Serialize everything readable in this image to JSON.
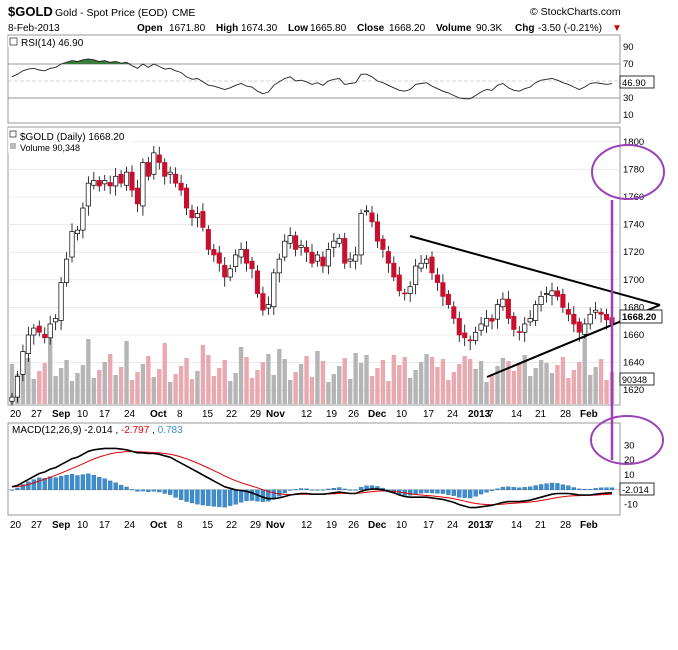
{
  "header": {
    "symbol": "$GOLD",
    "name": "Gold - Spot Price (EOD)",
    "exchange": "CME",
    "date": "8-Feb-2013",
    "open_label": "Open",
    "open": "1671.80",
    "high_label": "High",
    "high": "1674.30",
    "low_label": "Low",
    "low": "1665.80",
    "close_label": "Close",
    "close": "1668.20",
    "volume_label": "Volume",
    "volume": "90.3K",
    "chg_label": "Chg",
    "chg": "-3.50 (-0.21%)",
    "chg_arrow": "▼",
    "watermark": "© StockCharts.com"
  },
  "rsi_panel": {
    "label": "RSI(14) 46.90",
    "ticks": [
      "90",
      "70",
      "50",
      "30",
      "10"
    ],
    "value_box": "46.90"
  },
  "price_panel": {
    "legend_price": "$GOLD (Daily) 1668.20",
    "legend_volume": "Volume 90,348",
    "ticks": [
      "1800",
      "1780",
      "1760",
      "1740",
      "1720",
      "1700",
      "1680",
      "1660",
      "1640",
      "1620"
    ],
    "price_box": "1668.20",
    "volume_box": "90348"
  },
  "macd_panel": {
    "label_prefix": "MACD(12,26,9)",
    "macd": "-2.014",
    "signal": "-2.797",
    "hist": "0.783",
    "ticks": [
      "30",
      "20",
      "10",
      "0",
      "-10"
    ],
    "value_box": "-2.014"
  },
  "x_axis": {
    "labels": [
      "20",
      "27",
      "Sep",
      "10",
      "17",
      "24",
      "Oct",
      "8",
      "15",
      "22",
      "29",
      "Nov",
      "12",
      "19",
      "26",
      "Dec",
      "10",
      "17",
      "24",
      "2013",
      "7",
      "14",
      "21",
      "28",
      "Feb"
    ],
    "bold_labels": [
      "Sep",
      "Oct",
      "Nov",
      "Dec",
      "2013",
      "Feb"
    ]
  },
  "chart_data": {
    "type": "candlestick",
    "title": "$GOLD Gold - Spot Price (EOD) CME",
    "ylim_price": [
      1610,
      1810
    ],
    "ylim_rsi": [
      0,
      100
    ],
    "ylim_macd": [
      -15,
      35
    ],
    "colors": {
      "up_candle": "#ffffff",
      "down_candle": "#c8102e",
      "volume_up": "#b5b5b5",
      "volume_down": "#e8a9b1",
      "macd_line": "#000000",
      "signal_line": "#e00000",
      "histogram": "#3c8ecf",
      "rsi_fill": "#3a7a3a",
      "annotation_purple": "#9b42b8"
    },
    "close_series": [
      1615,
      1630,
      1648,
      1660,
      1665,
      1662,
      1658,
      1668,
      1672,
      1698,
      1715,
      1735,
      1736,
      1752,
      1770,
      1772,
      1768,
      1772,
      1768,
      1775,
      1770,
      1778,
      1765,
      1755,
      1785,
      1775,
      1792,
      1785,
      1775,
      1778,
      1770,
      1765,
      1752,
      1745,
      1748,
      1738,
      1722,
      1718,
      1712,
      1702,
      1708,
      1718,
      1722,
      1712,
      1708,
      1690,
      1678,
      1682,
      1705,
      1715,
      1728,
      1732,
      1722,
      1725,
      1720,
      1712,
      1718,
      1710,
      1722,
      1728,
      1730,
      1712,
      1715,
      1718,
      1748,
      1750,
      1742,
      1728,
      1722,
      1712,
      1702,
      1692,
      1690,
      1695,
      1710,
      1712,
      1715,
      1705,
      1698,
      1688,
      1682,
      1672,
      1660,
      1658,
      1656,
      1662,
      1668,
      1672,
      1670,
      1682,
      1686,
      1672,
      1664,
      1662,
      1668,
      1672,
      1682,
      1688,
      1690,
      1692,
      1688,
      1680,
      1675,
      1668,
      1662,
      1668,
      1675,
      1678,
      1675,
      1671,
      1668
    ],
    "rsi_series": [
      55,
      58,
      62,
      64,
      65,
      63,
      62,
      65,
      66,
      70,
      72,
      74,
      73,
      75,
      76,
      75,
      73,
      74,
      72,
      73,
      71,
      72,
      68,
      65,
      70,
      66,
      70,
      67,
      64,
      65,
      62,
      60,
      55,
      52,
      53,
      49,
      45,
      44,
      42,
      40,
      42,
      45,
      47,
      44,
      43,
      38,
      35,
      37,
      45,
      49,
      53,
      55,
      50,
      51,
      49,
      46,
      48,
      45,
      50,
      52,
      53,
      46,
      47,
      48,
      58,
      58,
      55,
      50,
      48,
      45,
      42,
      39,
      38,
      40,
      46,
      47,
      48,
      44,
      41,
      38,
      36,
      33,
      30,
      29,
      29,
      33,
      37,
      40,
      39,
      45,
      47,
      42,
      39,
      38,
      41,
      43,
      48,
      51,
      52,
      53,
      51,
      48,
      46,
      43,
      40,
      43,
      47,
      48,
      47,
      46,
      46.9
    ],
    "macd_series": [
      2,
      3,
      5,
      7,
      9,
      11,
      12,
      14,
      15,
      17,
      19,
      21,
      22,
      24,
      26,
      27,
      27.5,
      28,
      28,
      28,
      27.5,
      27,
      26,
      25,
      25,
      24.5,
      24.5,
      24,
      23,
      22,
      20,
      18,
      16,
      14,
      12,
      10,
      8,
      6,
      4,
      2,
      1,
      0,
      -0.5,
      -1,
      -2,
      -3.5,
      -5,
      -6,
      -6,
      -5.5,
      -4.5,
      -3.5,
      -3,
      -2.5,
      -2.5,
      -3,
      -3,
      -3,
      -2.5,
      -2,
      -1.5,
      -2,
      -2.5,
      -2.5,
      -1,
      0,
      0.5,
      0.5,
      0,
      -1,
      -2,
      -3.5,
      -4.5,
      -5,
      -5,
      -5,
      -5,
      -5.5,
      -6,
      -6.5,
      -7.5,
      -8.5,
      -10,
      -11,
      -12,
      -12,
      -11.5,
      -11,
      -10.5,
      -9.5,
      -8.5,
      -8,
      -8,
      -8,
      -7.5,
      -7,
      -6,
      -5,
      -4,
      -3,
      -2.5,
      -2.5,
      -2.5,
      -3,
      -3.5,
      -3.5,
      -3.5,
      -3,
      -2.5,
      -2.2,
      -2.014
    ]
  }
}
